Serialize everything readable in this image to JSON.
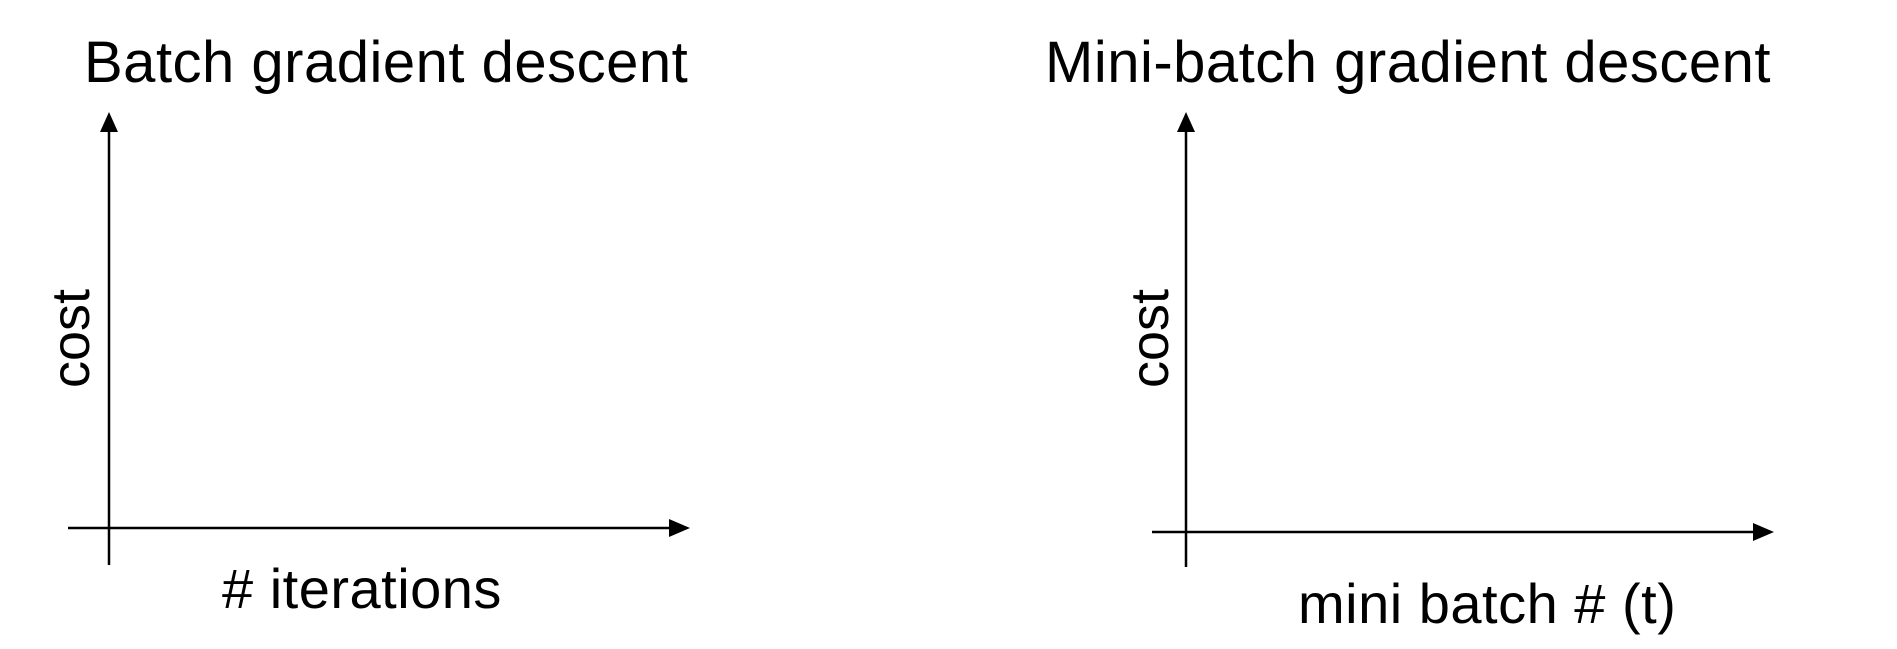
{
  "panels": [
    {
      "title": "Batch gradient descent",
      "ylabel": "cost",
      "xlabel": "# iterations"
    },
    {
      "title": "Mini-batch gradient descent",
      "ylabel": "cost",
      "xlabel": "mini batch # (t)"
    }
  ],
  "colors": {
    "axis": "#000000",
    "background": "#ffffff"
  }
}
